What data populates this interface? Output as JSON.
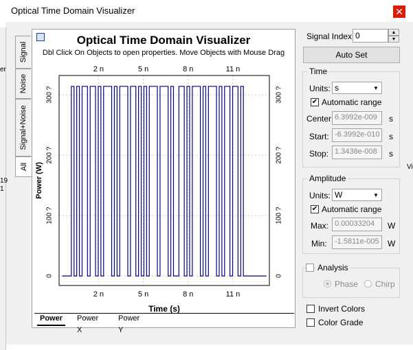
{
  "window": {
    "title": "Optical Time Domain Visualizer",
    "close_glyph": "✕"
  },
  "background_fragments": {
    "left_text_1": "er",
    "left_text_2": "19",
    "left_text_3": "1",
    "right_text": "Vi"
  },
  "side_tabs": [
    "Signal",
    "Noise",
    "Signal+Noise",
    "All"
  ],
  "plot": {
    "title": "Optical Time Domain Visualizer",
    "subtitle": "Dbl Click On Objects to open properties.  Move Objects with Mouse Drag"
  },
  "bottom_tabs": [
    "Power",
    "Power X",
    "Power Y"
  ],
  "controls": {
    "signal_index_label": "Signal Index:",
    "signal_index_value": "0",
    "auto_set": "Auto Set",
    "time": {
      "legend": "Time",
      "units_label": "Units:",
      "units_value": "s",
      "automatic_range": "Automatic range",
      "center_label": "Center:",
      "center_value": "6.3992e-009",
      "center_unit": "s",
      "start_label": "Start:",
      "start_value": "-6.3992e-010",
      "start_unit": "s",
      "stop_label": "Stop:",
      "stop_value": "1.3438e-008",
      "stop_unit": "s"
    },
    "amplitude": {
      "legend": "Amplitude",
      "units_label": "Units:",
      "units_value": "W",
      "automatic_range": "Automatic range",
      "max_label": "Max:",
      "max_value": "0.00033204",
      "max_unit": "W",
      "min_label": "Min:",
      "min_value": "-1.5811e-005",
      "min_unit": "W"
    },
    "analysis": {
      "legend": "Analysis",
      "phase": "Phase",
      "chirp": "Chirp"
    },
    "invert_colors": "Invert Colors",
    "color_grade": "Color Grade"
  },
  "chart_data": {
    "type": "line",
    "title": "Optical Time Domain Visualizer",
    "xlabel": "Time (s)",
    "ylabel": "Power (W)",
    "x_ticks": [
      "2 n",
      "5 n",
      "8 n",
      "11 n"
    ],
    "x_tick_values": [
      2,
      5,
      8,
      11
    ],
    "y_ticks_left": [
      "0",
      "100 ?",
      "200 ?",
      "300 ?"
    ],
    "y_ticks_right": [
      "0",
      "100 ?",
      "200 ?",
      "300 ?"
    ],
    "y_tick_values": [
      0,
      100,
      200,
      300
    ],
    "xlim": [
      -0.64,
      13.44
    ],
    "ylim": [
      -15.8,
      332
    ],
    "grid": true,
    "series": [
      {
        "color": "#000080",
        "bits": [
          1,
          0,
          1,
          0,
          1,
          1,
          0,
          1,
          1,
          0,
          1,
          0,
          1,
          1,
          1,
          0,
          1,
          0,
          1,
          1,
          1,
          0,
          1,
          1,
          0,
          1,
          0,
          1,
          0,
          1,
          1,
          1,
          0,
          1,
          1,
          1,
          0,
          1,
          0,
          0,
          1,
          1,
          0,
          1,
          0,
          1,
          1,
          1,
          0,
          1,
          0,
          1,
          1,
          1,
          0,
          1,
          0,
          1,
          1,
          0,
          1,
          1,
          0,
          1
        ],
        "bit_period_ns": 0.18,
        "start_ns": 0.18,
        "high": 314,
        "low": 0
      }
    ]
  }
}
